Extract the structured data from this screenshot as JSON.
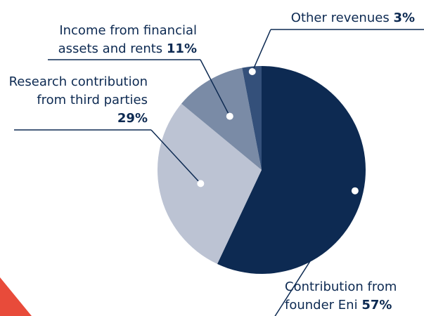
{
  "chart_data": {
    "type": "pie",
    "categories": [
      "Contribution from founder Eni",
      "Research contribution from third parties",
      "Income from financial assets and rents",
      "Other revenues"
    ],
    "values": [
      57,
      29,
      11,
      3
    ],
    "value_labels": [
      "57%",
      "29%",
      "11%",
      "3%"
    ],
    "colors": [
      "#0d2a52",
      "#bcc3d3",
      "#7a8ba6",
      "#34507a"
    ]
  }
}
